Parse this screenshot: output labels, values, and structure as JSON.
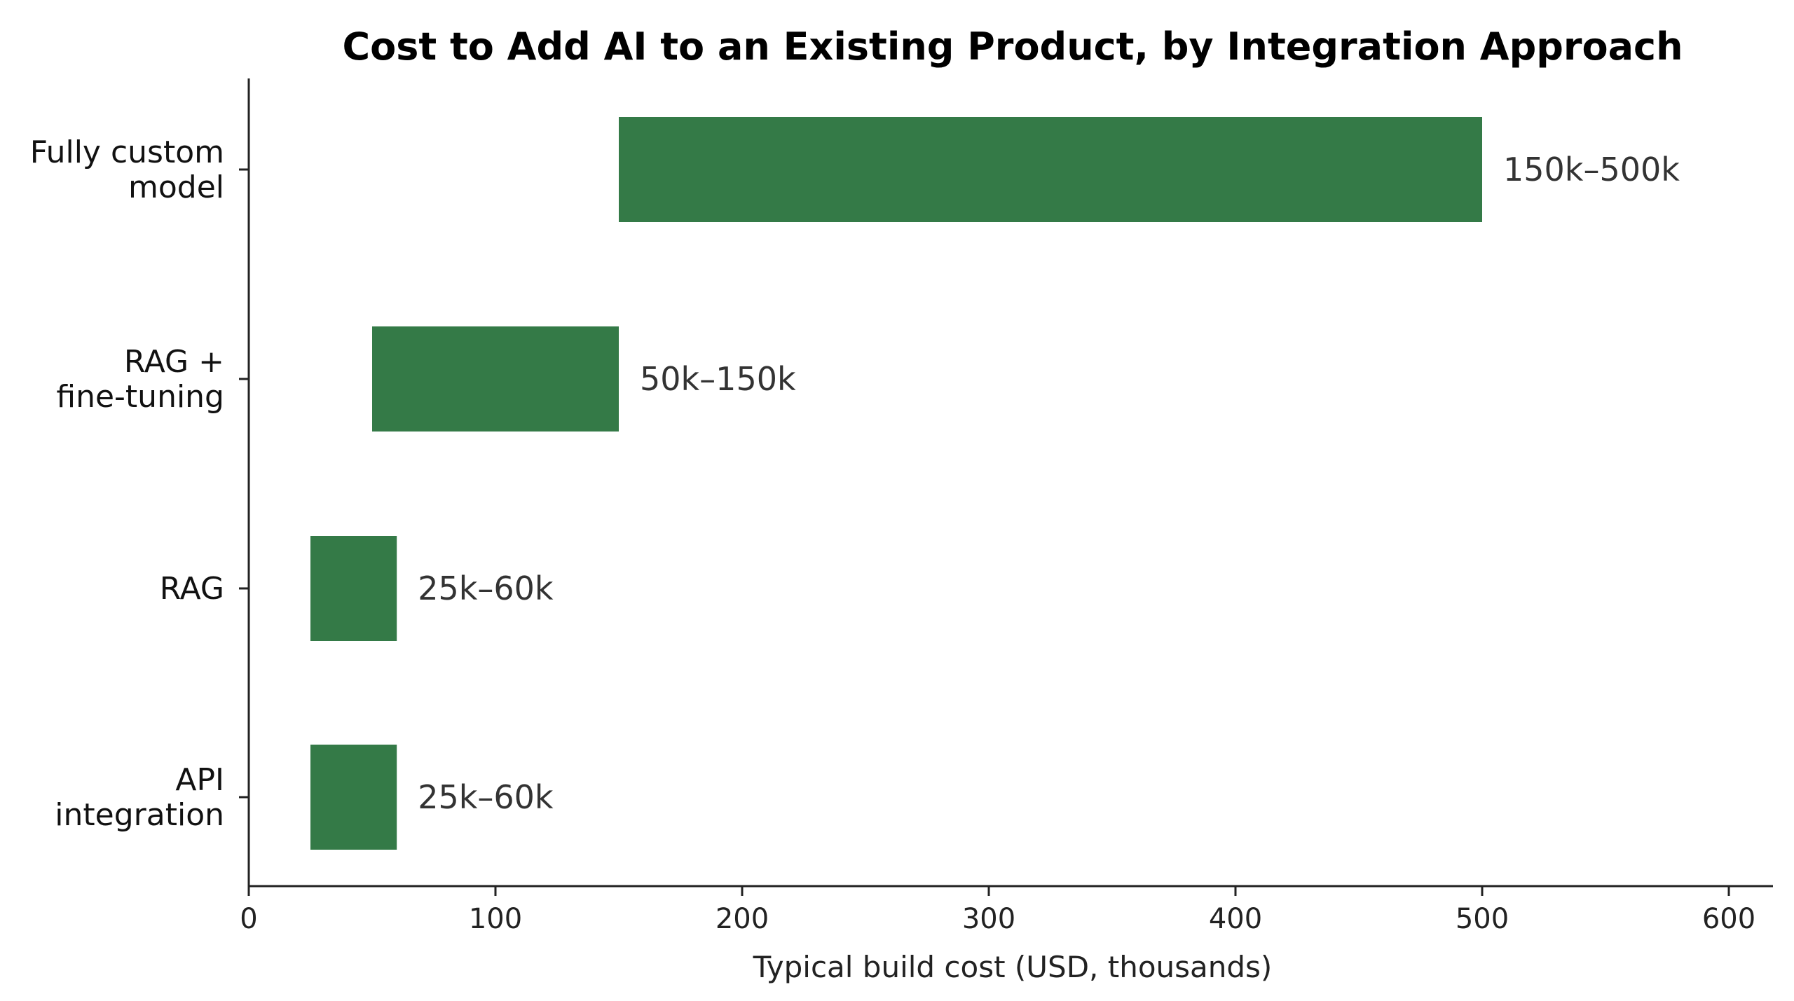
{
  "chart_data": {
    "type": "bar",
    "orientation": "horizontal",
    "title": "Cost to Add AI to an Existing Product, by Integration Approach",
    "xlabel": "Typical build cost (USD, thousands)",
    "ylabel": "",
    "xlim": [
      0,
      620
    ],
    "xticks": [
      0,
      100,
      200,
      300,
      400,
      500,
      600
    ],
    "grid": false,
    "bar_color": "#347a47",
    "categories": [
      [
        "Fully custom",
        "model"
      ],
      [
        "RAG +",
        "fine-tuning"
      ],
      [
        "RAG"
      ],
      [
        "API",
        "integration"
      ]
    ],
    "ranges": [
      {
        "start": 150,
        "end": 500,
        "label": "150k–500k"
      },
      {
        "start": 50,
        "end": 150,
        "label": "50k–150k"
      },
      {
        "start": 25,
        "end": 60,
        "label": "25k–60k"
      },
      {
        "start": 25,
        "end": 60,
        "label": "25k–60k"
      }
    ]
  }
}
